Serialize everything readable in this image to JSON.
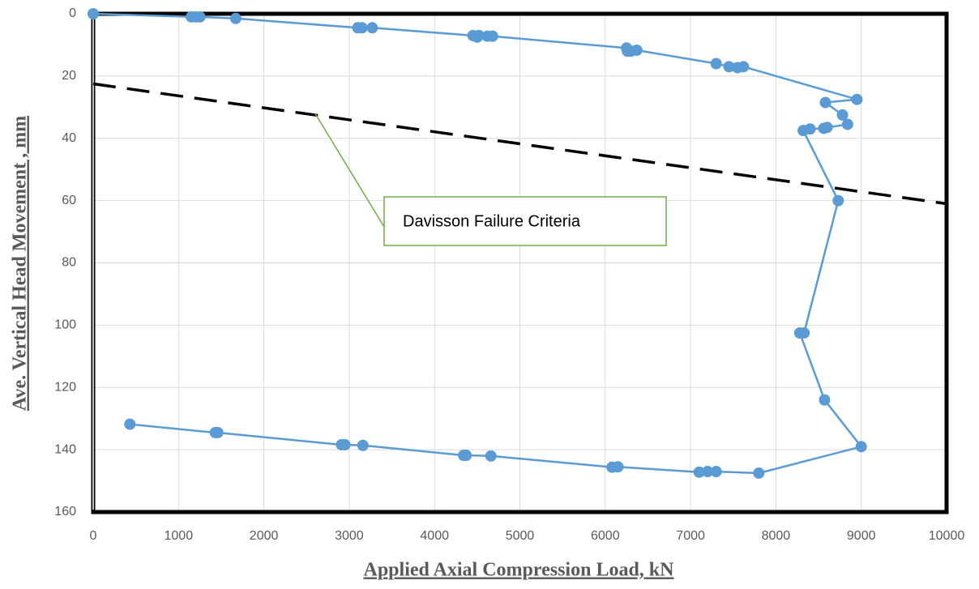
{
  "chart_data": {
    "type": "scatter",
    "x_label": "Applied Axial Compression Load, kN",
    "y_label": "Ave. Vertical Head Movement , mm",
    "xlim": [
      0,
      10000
    ],
    "xticks": [
      0,
      1000,
      2000,
      3000,
      4000,
      5000,
      6000,
      7000,
      8000,
      9000,
      10000
    ],
    "ylim": [
      0,
      160
    ],
    "yticks": [
      0,
      20,
      40,
      60,
      80,
      100,
      120,
      140,
      160
    ],
    "y_inverted": true,
    "grid": true,
    "series": [
      {
        "color": "#5b9bd5",
        "x": [
          0,
          1150,
          1200,
          1250,
          1670,
          3100,
          3150,
          3270,
          4450,
          4500,
          4520,
          4620,
          4680,
          6250,
          6260,
          6300,
          6370,
          7300,
          7450,
          7550,
          7620,
          8950,
          8580,
          8780,
          8840,
          8600,
          8560,
          8400,
          8320,
          8730,
          8330,
          8280,
          8570,
          9000,
          7800,
          7300,
          7200,
          7100,
          6150,
          6080,
          4660,
          4370,
          4340,
          3160,
          2950,
          2910,
          1460,
          1430,
          430
        ],
        "values": [
          0,
          1,
          1,
          1,
          1.5,
          4.5,
          4.5,
          4.5,
          7,
          7.5,
          7,
          7.2,
          7.2,
          11,
          12,
          12,
          11.7,
          16,
          17,
          17.3,
          17,
          27.5,
          28.5,
          32.5,
          35.5,
          36.5,
          36.8,
          37,
          37.5,
          60,
          102.5,
          102.5,
          124,
          139,
          147.5,
          147,
          147,
          147.2,
          145.5,
          145.6,
          142,
          141.8,
          141.8,
          138.6,
          138.4,
          138.4,
          134.5,
          134.5,
          131.8
        ]
      }
    ],
    "davisson_line": {
      "color": "#000000",
      "x": [
        0,
        10000
      ],
      "values": [
        22.5,
        61
      ]
    },
    "annotation": {
      "text": "Davisson Failure Criteria",
      "x": 2600,
      "y": 32,
      "color": "#70ad47"
    }
  }
}
